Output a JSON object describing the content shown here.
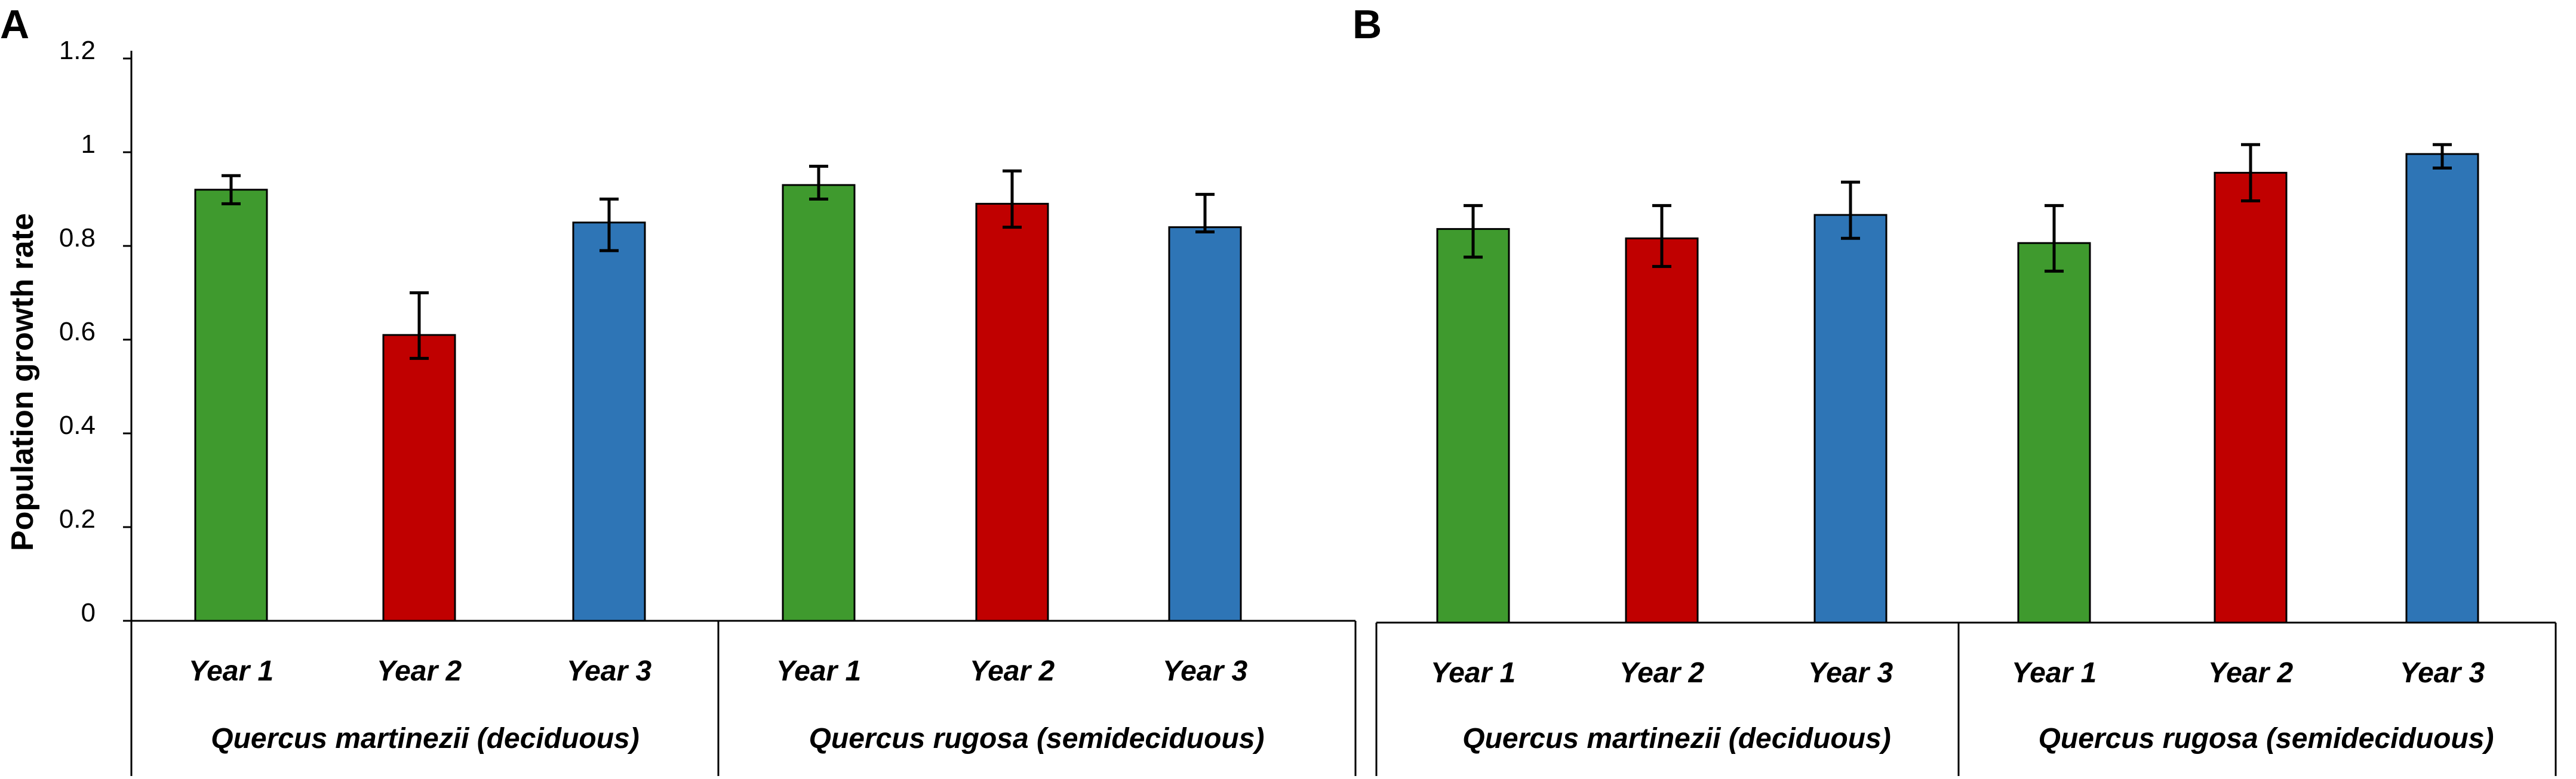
{
  "chart_data": [
    {
      "panel": "A",
      "type": "bar",
      "ylabel": "Population growth rate",
      "ylim": [
        0,
        1.2
      ],
      "yticks": [
        "0",
        "0.2",
        "0.4",
        "0.6",
        "0.8",
        "1",
        "1.2"
      ],
      "groups": [
        "Quercus martinezii (deciduous)",
        "Quercus rugosa (semideciduous)"
      ],
      "categories": [
        "Year 1",
        "Year 2",
        "Year 3",
        "Year 1",
        "Year 2",
        "Year 3"
      ],
      "values": [
        0.92,
        0.61,
        0.85,
        0.93,
        0.89,
        0.84
      ],
      "err_low": [
        0.89,
        0.56,
        0.79,
        0.9,
        0.84,
        0.83
      ],
      "err_high": [
        0.95,
        0.7,
        0.9,
        0.97,
        0.96,
        0.91
      ],
      "colors": [
        "#3f9a2e",
        "#c00000",
        "#2e75b6",
        "#3f9a2e",
        "#c00000",
        "#2e75b6"
      ]
    },
    {
      "panel": "B",
      "type": "bar",
      "ylabel": "",
      "ylim": [
        0,
        1.2
      ],
      "groups": [
        "Quercus martinezii (deciduous)",
        "Quercus rugosa (semideciduous)"
      ],
      "categories": [
        "Year 1",
        "Year 2",
        "Year 3",
        "Year 1",
        "Year 2",
        "Year 3"
      ],
      "values": [
        0.84,
        0.82,
        0.87,
        0.81,
        0.96,
        1.0
      ],
      "err_low": [
        0.78,
        0.76,
        0.82,
        0.75,
        0.9,
        0.97
      ],
      "err_high": [
        0.89,
        0.89,
        0.94,
        0.89,
        1.02,
        1.02
      ],
      "colors": [
        "#3f9a2e",
        "#c00000",
        "#2e75b6",
        "#3f9a2e",
        "#c00000",
        "#2e75b6"
      ]
    }
  ]
}
